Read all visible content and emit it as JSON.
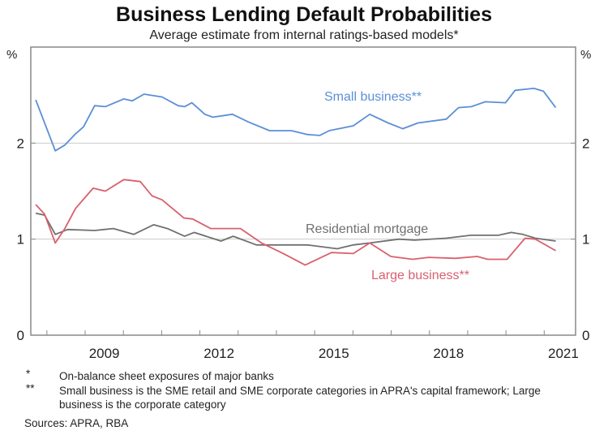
{
  "chart_data": {
    "type": "line",
    "title": "Business Lending Default Probabilities",
    "subtitle": "Average estimate from internal ratings-based models*",
    "ylabel_left": "%",
    "ylabel_right": "%",
    "ylim": [
      0,
      3
    ],
    "xlim": [
      2007.58,
      2021.82
    ],
    "yticks": [
      "0",
      "1",
      "2"
    ],
    "ytick_values": [
      0,
      1,
      2
    ],
    "xticks": [
      "2009",
      "2012",
      "2015",
      "2018",
      "2021"
    ],
    "xtick_values": [
      2009,
      2012,
      2015,
      2018,
      2021
    ],
    "grid": true,
    "series": [
      {
        "name": "Small business**",
        "color": "#5b8fd6",
        "x": [
          2007.71,
          2008.22,
          2008.47,
          2008.73,
          2008.96,
          2009.25,
          2009.53,
          2010.01,
          2010.23,
          2010.54,
          2011.01,
          2011.43,
          2011.6,
          2011.79,
          2012.13,
          2012.34,
          2012.85,
          2013.27,
          2013.82,
          2014.39,
          2014.81,
          2015.13,
          2015.38,
          2016.01,
          2016.44,
          2016.92,
          2017.3,
          2017.7,
          2018.44,
          2018.76,
          2019.1,
          2019.46,
          2019.99,
          2020.24,
          2020.73,
          2020.98,
          2021.3
        ],
        "y": [
          2.45,
          1.92,
          1.98,
          2.09,
          2.17,
          2.39,
          2.38,
          2.46,
          2.44,
          2.51,
          2.48,
          2.39,
          2.38,
          2.42,
          2.3,
          2.27,
          2.3,
          2.22,
          2.13,
          2.13,
          2.09,
          2.08,
          2.13,
          2.18,
          2.3,
          2.21,
          2.15,
          2.21,
          2.25,
          2.37,
          2.38,
          2.43,
          2.42,
          2.55,
          2.57,
          2.54,
          2.37
        ]
      },
      {
        "name": "Residential mortgage",
        "color": "#707070",
        "x": [
          2007.71,
          2007.94,
          2008.22,
          2008.54,
          2009.25,
          2009.74,
          2010.27,
          2010.79,
          2011.15,
          2011.6,
          2011.85,
          2012.55,
          2012.87,
          2013.48,
          2014.03,
          2014.81,
          2015.59,
          2016.01,
          2016.44,
          2017.2,
          2017.62,
          2018.44,
          2019.08,
          2019.8,
          2020.14,
          2020.44,
          2020.77,
          2021.3
        ],
        "y": [
          1.27,
          1.25,
          1.05,
          1.1,
          1.09,
          1.11,
          1.05,
          1.15,
          1.11,
          1.03,
          1.07,
          0.98,
          1.03,
          0.94,
          0.94,
          0.94,
          0.9,
          0.94,
          0.96,
          1.0,
          0.99,
          1.01,
          1.04,
          1.04,
          1.07,
          1.05,
          1.01,
          0.98
        ]
      },
      {
        "name": "Large business**",
        "color": "#d9606f",
        "x": [
          2007.71,
          2007.94,
          2008.22,
          2008.47,
          2008.75,
          2009.21,
          2009.53,
          2010.01,
          2010.44,
          2010.75,
          2011.01,
          2011.58,
          2011.81,
          2012.28,
          2012.64,
          2013.06,
          2013.61,
          2014.18,
          2014.75,
          2015.44,
          2016.01,
          2016.44,
          2016.99,
          2017.56,
          2017.98,
          2018.68,
          2019.25,
          2019.52,
          2020.03,
          2020.5,
          2020.77,
          2021.3
        ],
        "y": [
          1.36,
          1.26,
          0.96,
          1.11,
          1.32,
          1.53,
          1.5,
          1.62,
          1.6,
          1.45,
          1.41,
          1.22,
          1.21,
          1.11,
          1.11,
          1.11,
          0.96,
          0.85,
          0.73,
          0.86,
          0.85,
          0.96,
          0.82,
          0.79,
          0.81,
          0.8,
          0.82,
          0.79,
          0.79,
          1.01,
          1.0,
          0.88
        ]
      }
    ],
    "annotations": [
      "Small business**",
      "Residential mortgage",
      "Large business**"
    ]
  },
  "footnotes": [
    {
      "mark": "*",
      "text": "On-balance sheet exposures of major banks"
    },
    {
      "mark": "**",
      "text": "Small business is the SME retail and SME corporate categories in APRA's capital framework; Large business is the corporate category"
    }
  ],
  "sources": "Sources: APRA, RBA"
}
